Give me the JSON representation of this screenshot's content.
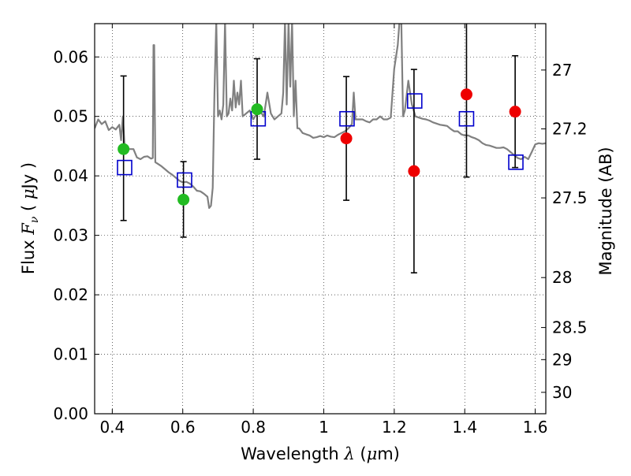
{
  "chart_data": {
    "type": "scatter",
    "xlabel": {
      "pre": "Wavelength  ",
      "sym": "λ",
      "post": " (",
      "mu": "μ",
      "unit": "m)"
    },
    "ylabel": {
      "pre": "Flux  ",
      "sym": "F",
      "sub": "ν",
      "post": "  ( ",
      "mu": "μ",
      "unit": "Jy )"
    },
    "ylabel_right": "Magnitude (AB)",
    "xlim": [
      0.35,
      1.63
    ],
    "ylim": [
      0.0,
      0.0656
    ],
    "xticks": [
      0.4,
      0.6,
      0.8,
      1.0,
      1.2,
      1.4,
      1.6
    ],
    "xtick_labels": [
      "0.4",
      "0.6",
      "0.8",
      "1",
      "1.2",
      "1.4",
      "1.6"
    ],
    "yticks": [
      0.0,
      0.01,
      0.02,
      0.03,
      0.04,
      0.05,
      0.06
    ],
    "ytick_labels": [
      "0.00",
      "0.01",
      "0.02",
      "0.03",
      "0.04",
      "0.05",
      "0.06"
    ],
    "right_ticks": [
      {
        "label": "27",
        "flux": 0.0578
      },
      {
        "label": "27.2",
        "flux": 0.0479
      },
      {
        "label": "27.5",
        "flux": 0.0363
      },
      {
        "label": "28",
        "flux": 0.0229
      },
      {
        "label": "28.5",
        "flux": 0.0145
      },
      {
        "label": "29",
        "flux": 0.0091
      },
      {
        "label": "30",
        "flux": 0.0036
      }
    ],
    "grid": true,
    "model_spectrum": {
      "color": "#808080",
      "x": [
        0.35,
        0.36,
        0.37,
        0.38,
        0.39,
        0.4,
        0.41,
        0.42,
        0.425,
        0.43,
        0.433,
        0.436,
        0.44,
        0.45,
        0.46,
        0.47,
        0.48,
        0.49,
        0.5,
        0.51,
        0.515,
        0.517,
        0.519,
        0.522,
        0.53,
        0.54,
        0.55,
        0.56,
        0.57,
        0.58,
        0.59,
        0.6,
        0.61,
        0.62,
        0.63,
        0.64,
        0.65,
        0.66,
        0.67,
        0.675,
        0.68,
        0.685,
        0.69,
        0.695,
        0.7,
        0.705,
        0.71,
        0.715,
        0.72,
        0.725,
        0.73,
        0.735,
        0.74,
        0.745,
        0.75,
        0.755,
        0.76,
        0.765,
        0.77,
        0.78,
        0.79,
        0.8,
        0.81,
        0.82,
        0.83,
        0.84,
        0.85,
        0.86,
        0.87,
        0.88,
        0.885,
        0.89,
        0.895,
        0.9,
        0.905,
        0.91,
        0.915,
        0.92,
        0.925,
        0.93,
        0.94,
        0.95,
        0.96,
        0.97,
        0.98,
        0.99,
        1.0,
        1.01,
        1.02,
        1.03,
        1.04,
        1.05,
        1.06,
        1.07,
        1.08,
        1.085,
        1.09,
        1.1,
        1.11,
        1.12,
        1.13,
        1.14,
        1.15,
        1.16,
        1.17,
        1.18,
        1.19,
        1.2,
        1.21,
        1.215,
        1.22,
        1.225,
        1.23,
        1.24,
        1.25,
        1.26,
        1.27,
        1.28,
        1.29,
        1.3,
        1.31,
        1.32,
        1.33,
        1.34,
        1.35,
        1.36,
        1.37,
        1.38,
        1.39,
        1.4,
        1.41,
        1.42,
        1.43,
        1.44,
        1.45,
        1.46,
        1.47,
        1.48,
        1.49,
        1.5,
        1.51,
        1.52,
        1.53,
        1.54,
        1.55,
        1.56,
        1.57,
        1.58,
        1.59,
        1.6,
        1.61,
        1.62,
        1.63
      ],
      "y": [
        0.048,
        0.0495,
        0.0487,
        0.0492,
        0.0477,
        0.0482,
        0.0478,
        0.0486,
        0.046,
        0.05,
        0.047,
        0.044,
        0.0446,
        0.0445,
        0.0445,
        0.0431,
        0.0428,
        0.0432,
        0.0433,
        0.0429,
        0.043,
        0.062,
        0.062,
        0.0423,
        0.042,
        0.0416,
        0.0411,
        0.0406,
        0.0402,
        0.0397,
        0.0392,
        0.0389,
        0.039,
        0.0387,
        0.0382,
        0.0375,
        0.0374,
        0.037,
        0.0365,
        0.0346,
        0.035,
        0.038,
        0.054,
        0.066,
        0.05,
        0.051,
        0.0495,
        0.052,
        0.066,
        0.05,
        0.0505,
        0.053,
        0.051,
        0.056,
        0.0515,
        0.054,
        0.052,
        0.056,
        0.05,
        0.0505,
        0.051,
        0.0495,
        0.0505,
        0.0508,
        0.05,
        0.054,
        0.0505,
        0.0495,
        0.05,
        0.0505,
        0.054,
        0.066,
        0.052,
        0.066,
        0.055,
        0.066,
        0.05,
        0.056,
        0.048,
        0.048,
        0.0472,
        0.047,
        0.0468,
        0.0464,
        0.0465,
        0.0467,
        0.0465,
        0.0468,
        0.0466,
        0.0465,
        0.0469,
        0.0472,
        0.0475,
        0.048,
        0.0487,
        0.054,
        0.0495,
        0.0495,
        0.0495,
        0.0492,
        0.049,
        0.0495,
        0.0495,
        0.05,
        0.0495,
        0.0495,
        0.0498,
        0.058,
        0.062,
        0.066,
        0.066,
        0.05,
        0.051,
        0.056,
        0.052,
        0.05,
        0.0498,
        0.0496,
        0.0495,
        0.0493,
        0.049,
        0.0488,
        0.0486,
        0.0485,
        0.0484,
        0.0479,
        0.0475,
        0.0475,
        0.047,
        0.0468,
        0.0468,
        0.0465,
        0.0463,
        0.046,
        0.0455,
        0.0452,
        0.0451,
        0.0449,
        0.0447,
        0.0447,
        0.0448,
        0.0445,
        0.044,
        0.0435,
        0.043,
        0.0428,
        0.0432,
        0.0428,
        0.044,
        0.0453,
        0.0455,
        0.0454,
        0.0455
      ]
    },
    "series": [
      {
        "marker": "open-square",
        "color": "#0000cc",
        "points": [
          {
            "x": 0.435,
            "y": 0.0414
          },
          {
            "x": 0.605,
            "y": 0.0393
          },
          {
            "x": 0.814,
            "y": 0.0496
          },
          {
            "x": 1.066,
            "y": 0.0496
          },
          {
            "x": 1.258,
            "y": 0.0526
          },
          {
            "x": 1.405,
            "y": 0.0496
          },
          {
            "x": 1.545,
            "y": 0.0423
          }
        ]
      },
      {
        "marker": "filled-circle",
        "color": "#22bb22",
        "points": [
          {
            "x": 0.432,
            "y": 0.0445,
            "yerr_low": 0.0325,
            "yerr_high": 0.0568
          },
          {
            "x": 0.602,
            "y": 0.036,
            "yerr_low": 0.0297,
            "yerr_high": 0.0424
          },
          {
            "x": 0.811,
            "y": 0.0512,
            "yerr_low": 0.0428,
            "yerr_high": 0.0597
          }
        ]
      },
      {
        "marker": "filled-circle",
        "color": "#ee0000",
        "points": [
          {
            "x": 1.064,
            "y": 0.0463,
            "yerr_low": 0.0359,
            "yerr_high": 0.0567
          },
          {
            "x": 1.256,
            "y": 0.0408,
            "yerr_low": 0.0237,
            "yerr_high": 0.0579
          },
          {
            "x": 1.405,
            "y": 0.0537,
            "yerr_low": 0.0398,
            "yerr_high": 0.066
          },
          {
            "x": 1.543,
            "y": 0.0508,
            "yerr_low": 0.0414,
            "yerr_high": 0.0602
          }
        ]
      }
    ]
  }
}
